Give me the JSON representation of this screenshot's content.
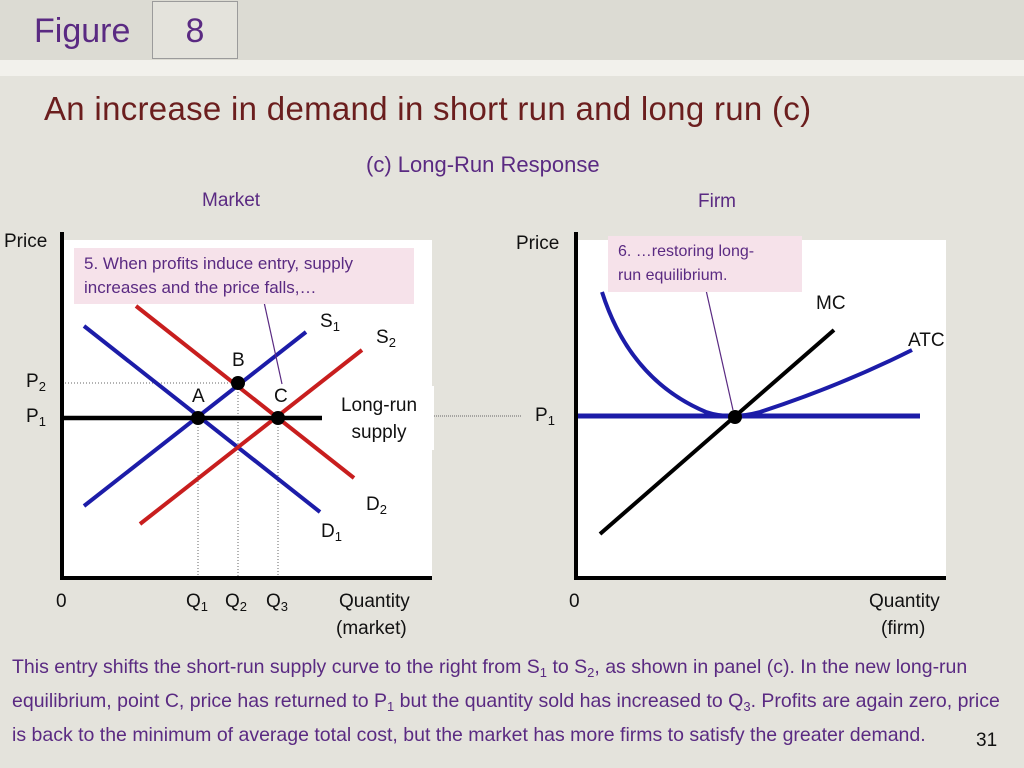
{
  "header": {
    "figure_word": "Figure",
    "figure_number": "8"
  },
  "title": "An increase in demand in short run and long run (c)",
  "subtitle": "(c) Long-Run Response",
  "market": {
    "panel_label": "Market",
    "price_axis": "Price",
    "origin": "0",
    "qty_axis": {
      "line1": "Quantity",
      "line2": "(market)"
    },
    "note": {
      "line1": "5. When profits induce entry, supply",
      "line2": "increases and the price falls,…"
    },
    "long_run_supply": {
      "line1": "Long-run",
      "line2": "supply"
    },
    "labels": {
      "s1": {
        "main": "S",
        "sub": "1"
      },
      "s2": {
        "main": "S",
        "sub": "2"
      },
      "d1": {
        "main": "D",
        "sub": "1"
      },
      "d2": {
        "main": "D",
        "sub": "2"
      },
      "p2": {
        "main": "P",
        "sub": "2"
      },
      "p1": {
        "main": "P",
        "sub": "1"
      },
      "q1": {
        "main": "Q",
        "sub": "1"
      },
      "q2": {
        "main": "Q",
        "sub": "2"
      },
      "q3": {
        "main": "Q",
        "sub": "3"
      },
      "a": "A",
      "b": "B",
      "c": "C"
    }
  },
  "firm": {
    "panel_label": "Firm",
    "price_axis": "Price",
    "origin": "0",
    "qty_axis": {
      "line1": "Quantity",
      "line2": "(firm)"
    },
    "note": {
      "line1": "6. …restoring long-",
      "line2": "run equilibrium."
    },
    "labels": {
      "mc": "MC",
      "atc": "ATC",
      "p1": {
        "main": "P",
        "sub": "1"
      }
    }
  },
  "caption": {
    "t1": "This entry shifts the short-run supply curve to the right from S",
    "s1": "1",
    "t2": " to S",
    "s2": "2",
    "t3": ", as shown in panel (c). In the new long-run equilibrium, point C, price has returned to P",
    "p1": "1",
    "t4": " but the quantity sold has increased to Q",
    "q3": "3",
    "t5": ". Profits are again zero, price is back to the minimum of average total cost, but the market has more firms to satisfy the greater demand."
  },
  "page_number": "31",
  "colors": {
    "supply_blue": "#1c1ca8",
    "demand_red": "#c81e1e",
    "accent_purple": "#5a2a82",
    "note_pink": "#f6e2ea"
  }
}
